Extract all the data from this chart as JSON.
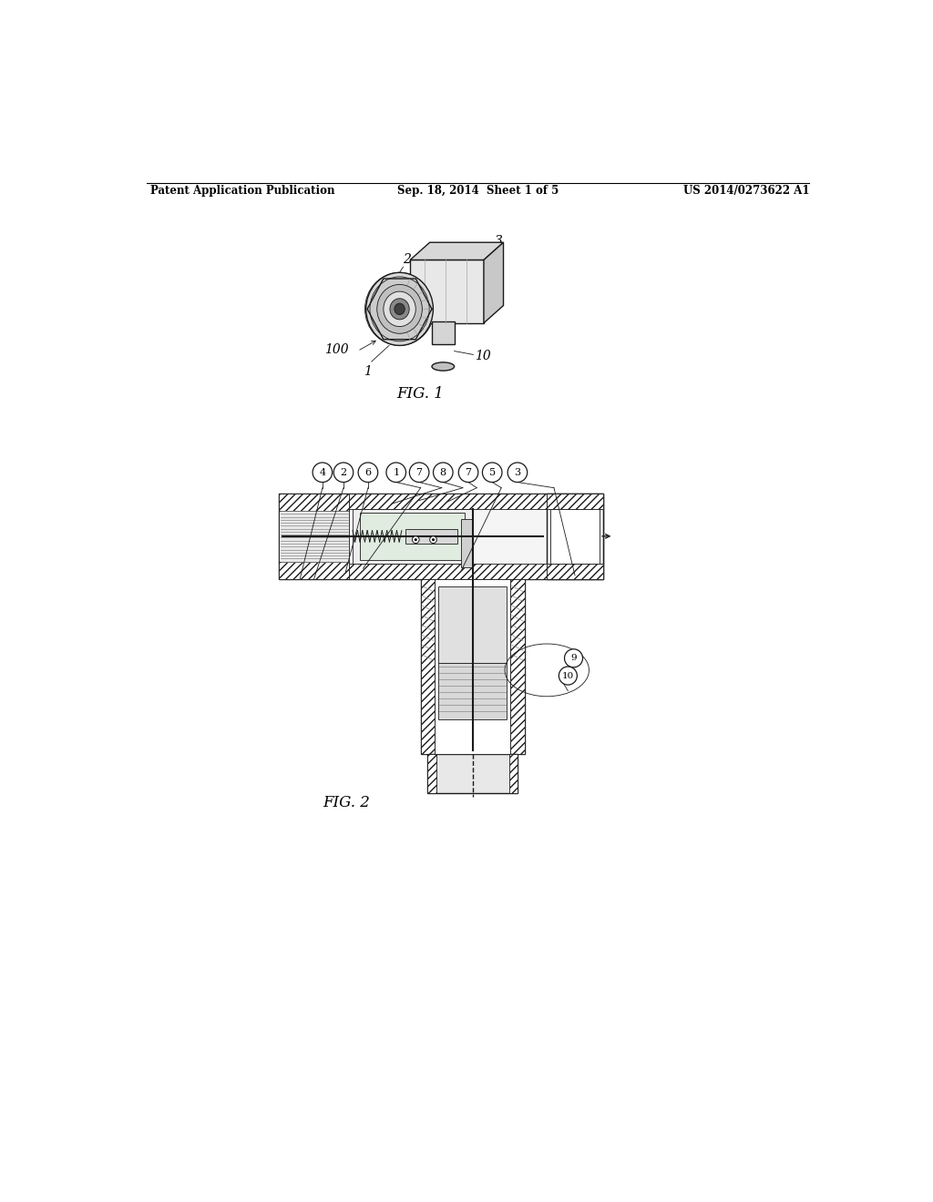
{
  "page_width": 10.24,
  "page_height": 13.2,
  "bg_color": "#ffffff",
  "header_text_left": "Patent Application Publication",
  "header_text_mid": "Sep. 18, 2014  Sheet 1 of 5",
  "header_text_right": "US 2014/0273622 A1",
  "fig1_caption": "FIG. 1",
  "fig2_caption": "FIG. 2",
  "line_color": "#1a1a1a",
  "lw_main": 1.0,
  "lw_thin": 0.6,
  "lw_thick": 1.5
}
